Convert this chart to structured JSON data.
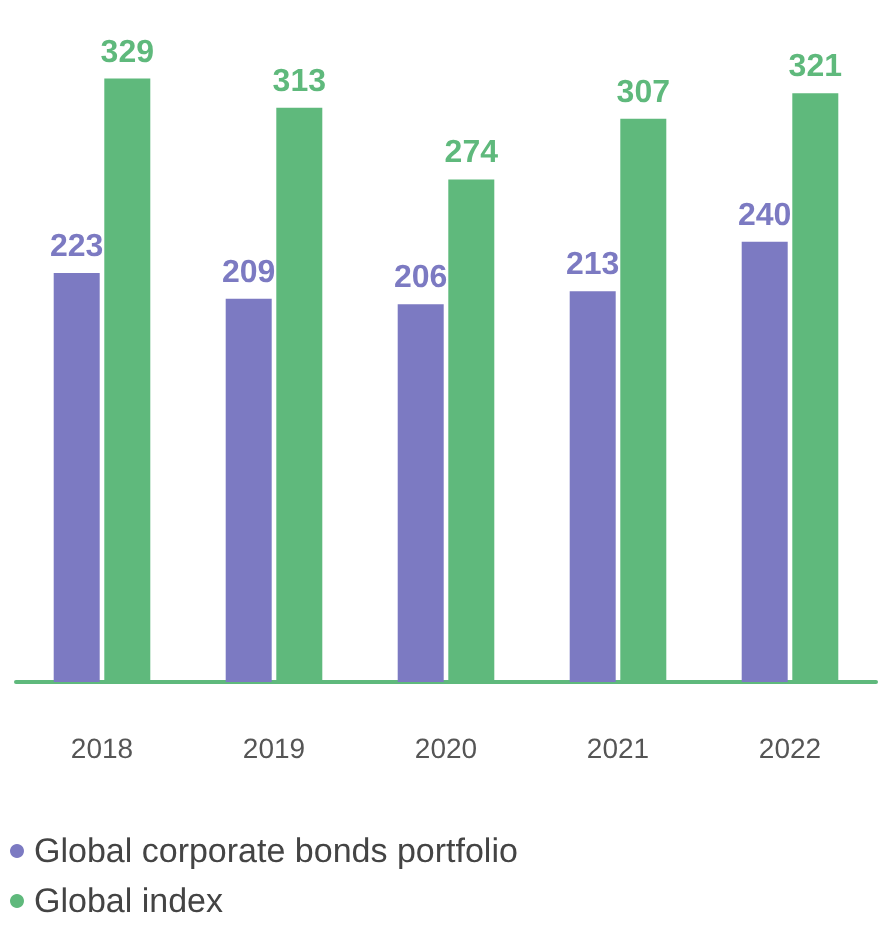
{
  "chart_data": {
    "type": "bar",
    "categories": [
      "2018",
      "2019",
      "2020",
      "2021",
      "2022"
    ],
    "series": [
      {
        "name": "Global corporate bonds portfolio",
        "color": "#7c7ac2",
        "values": [
          223,
          209,
          206,
          213,
          240
        ]
      },
      {
        "name": "Global index",
        "color": "#5fb97c",
        "values": [
          329,
          313,
          274,
          307,
          321
        ]
      }
    ],
    "data_labels": true,
    "legend": "bottom left",
    "grid": false
  }
}
